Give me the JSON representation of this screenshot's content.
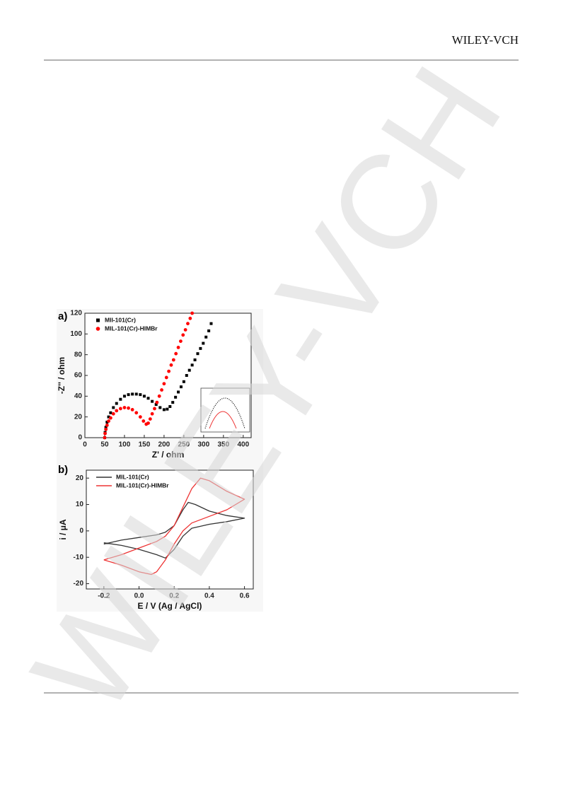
{
  "header": {
    "publisher": "WILEY-VCH",
    "watermark": "WILEY-VCH"
  },
  "chart_data": [
    {
      "type": "scatter",
      "panel": "a)",
      "x_label": "Z' / ohm",
      "y_label": "-Z'' / ohm",
      "xlim": [
        0,
        420
      ],
      "ylim": [
        0,
        120
      ],
      "xticks": [
        0,
        50,
        100,
        150,
        200,
        250,
        300,
        350,
        400
      ],
      "yticks": [
        0,
        20,
        40,
        60,
        80,
        100,
        120
      ],
      "legend": "upper left",
      "series": [
        {
          "name": "MII-101(Cr)",
          "color": "#000000",
          "marker": "square",
          "x": [
            50,
            51,
            53,
            56,
            60,
            65,
            72,
            80,
            90,
            100,
            110,
            120,
            130,
            140,
            150,
            160,
            170,
            180,
            190,
            200,
            208,
            215,
            222,
            229,
            236,
            243,
            250,
            257,
            264,
            271,
            278,
            285,
            292,
            299,
            306,
            313,
            319
          ],
          "values": [
            0,
            5,
            10,
            15,
            20,
            24,
            29,
            33,
            37,
            40,
            41.5,
            42,
            42,
            41.5,
            40,
            38,
            35,
            32,
            29,
            27,
            27.5,
            30,
            34,
            39,
            44,
            49,
            54,
            60,
            65,
            70,
            75,
            81,
            86,
            91,
            97,
            103,
            110
          ]
        },
        {
          "name": "MIL-101(Cr)-HIMBr",
          "color": "#ff0000",
          "marker": "circle",
          "x": [
            50,
            51,
            53,
            56,
            60,
            65,
            72,
            80,
            90,
            100,
            110,
            120,
            130,
            140,
            148,
            155,
            160,
            165,
            170,
            176,
            182,
            188,
            194,
            200,
            206,
            212,
            218,
            224,
            230,
            236,
            242,
            248,
            254,
            260,
            266,
            271
          ],
          "values": [
            0,
            4,
            8,
            12,
            16,
            19,
            23,
            26,
            28,
            29,
            28.5,
            27,
            24,
            20,
            16,
            13,
            14,
            18,
            23,
            28,
            34,
            40,
            46,
            52,
            58,
            64,
            70,
            75,
            81,
            87,
            93,
            99,
            104,
            110,
            115,
            120
          ]
        }
      ]
    },
    {
      "type": "line",
      "panel": "b)",
      "x_label": "E / V (Ag / AgCl)",
      "y_label": "i / μA",
      "xlim": [
        -0.3,
        0.65
      ],
      "ylim": [
        -22,
        23
      ],
      "xticks": [
        -0.2,
        {
          "value": 0,
          "label": "0.0"
        },
        0.2,
        0.4,
        0.6
      ],
      "yticks": [
        -20,
        -10,
        0,
        10,
        20
      ],
      "legend": "upper left",
      "series": [
        {
          "name": "MIL-101(Cr)",
          "color": "#333333",
          "x": [
            -0.2,
            -0.1,
            0,
            0.1,
            0.15,
            0.2,
            0.25,
            0.28,
            0.32,
            0.4,
            0.5,
            0.6,
            0.5,
            0.4,
            0.3,
            0.25,
            0.2,
            0.15,
            0.1,
            0,
            -0.1,
            -0.2
          ],
          "values": [
            -5,
            -3.5,
            -2.5,
            -1.5,
            -0.5,
            2,
            8,
            10.8,
            10,
            7.5,
            5.8,
            4.8,
            3.5,
            2.5,
            1,
            -2,
            -7,
            -10.3,
            -9,
            -7,
            -5.5,
            -4.5
          ]
        },
        {
          "name": "MIL-101(Cr)-HIMBr",
          "color": "#ee3333",
          "x": [
            -0.2,
            -0.1,
            0,
            0.1,
            0.15,
            0.2,
            0.25,
            0.3,
            0.35,
            0.4,
            0.5,
            0.6,
            0.5,
            0.4,
            0.3,
            0.25,
            0.2,
            0.15,
            0.1,
            0.07,
            0,
            -0.1,
            -0.2
          ],
          "values": [
            -11,
            -9,
            -6.5,
            -4,
            -2,
            2,
            9,
            16,
            20,
            19,
            15,
            12,
            8,
            5.5,
            3,
            0,
            -5,
            -11,
            -15.5,
            -16.5,
            -15.5,
            -13,
            -11
          ]
        }
      ]
    }
  ]
}
